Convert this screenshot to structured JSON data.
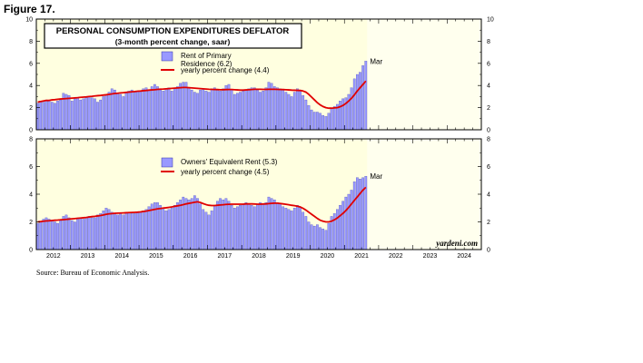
{
  "figure_label": "Figure 17.",
  "source_note": "Source: Bureau of Economic Analysis.",
  "credit": "yardeni.com",
  "colors": {
    "panel_bg": "#ffffe0",
    "projection_bg": "#ffffff",
    "bar_fill": "#9999ff",
    "bar_stroke": "#3333aa",
    "line": "#e00000"
  },
  "chart_data": [
    {
      "type": "bar",
      "title": "PERSONAL CONSUMPTION EXPENDITURES DEFLATOR",
      "subtitle": "(3-month percent change, saar)",
      "ylim": [
        0,
        10
      ],
      "yticks": [
        0,
        2,
        4,
        6,
        8,
        10
      ],
      "x_start": "2012-01",
      "x_end": "2024-12",
      "x_tick_years": [
        2012,
        2013,
        2014,
        2015,
        2016,
        2017,
        2018,
        2019,
        2020,
        2021,
        2022,
        2023,
        2024
      ],
      "end_label": "Mar",
      "series": [
        {
          "name": "Rent of Primary Residence (6.2)",
          "name_line1": "Rent of Primary",
          "name_line2": "Residence (6.2)",
          "kind": "bar",
          "start": "2012-01",
          "values": [
            2.4,
            2.6,
            2.5,
            2.7,
            2.6,
            2.5,
            2.4,
            2.6,
            2.7,
            3.3,
            3.2,
            3.1,
            2.6,
            2.8,
            2.9,
            2.7,
            2.8,
            2.9,
            3.0,
            2.9,
            2.8,
            2.5,
            2.7,
            3.0,
            3.2,
            3.4,
            3.7,
            3.6,
            3.3,
            3.2,
            3.0,
            3.3,
            3.5,
            3.6,
            3.4,
            3.5,
            3.5,
            3.7,
            3.8,
            3.6,
            3.9,
            4.1,
            3.9,
            3.6,
            3.5,
            3.7,
            3.8,
            3.5,
            3.7,
            3.9,
            4.2,
            4.3,
            4.3,
            3.8,
            3.6,
            3.4,
            3.3,
            3.6,
            3.7,
            3.5,
            3.4,
            3.7,
            3.8,
            3.6,
            3.5,
            3.7,
            4.0,
            4.1,
            3.6,
            3.2,
            3.3,
            3.4,
            3.5,
            3.6,
            3.7,
            3.8,
            3.8,
            3.6,
            3.4,
            3.5,
            3.8,
            4.3,
            4.2,
            3.9,
            3.8,
            3.7,
            3.6,
            3.4,
            3.2,
            3.0,
            3.4,
            3.7,
            3.5,
            3.1,
            2.7,
            2.2,
            1.8,
            1.6,
            1.6,
            1.5,
            1.3,
            1.2,
            1.5,
            1.9,
            2.1,
            2.3,
            2.6,
            2.8,
            2.9,
            3.2,
            3.8,
            4.6,
            5.0,
            5.2,
            5.8,
            6.2
          ],
          "color": "#9999ff"
        },
        {
          "name": "yearly percent change (4.4)",
          "kind": "line",
          "start": "2012-01",
          "values": [
            2.5,
            2.55,
            2.6,
            2.65,
            2.65,
            2.7,
            2.72,
            2.75,
            2.78,
            2.8,
            2.82,
            2.84,
            2.86,
            2.88,
            2.9,
            2.93,
            2.95,
            2.97,
            3.0,
            3.02,
            3.05,
            3.08,
            3.1,
            3.13,
            3.16,
            3.2,
            3.24,
            3.28,
            3.3,
            3.33,
            3.35,
            3.38,
            3.4,
            3.43,
            3.45,
            3.48,
            3.5,
            3.53,
            3.55,
            3.58,
            3.6,
            3.62,
            3.65,
            3.67,
            3.68,
            3.7,
            3.72,
            3.74,
            3.76,
            3.78,
            3.8,
            3.82,
            3.82,
            3.8,
            3.78,
            3.76,
            3.74,
            3.72,
            3.7,
            3.68,
            3.66,
            3.65,
            3.64,
            3.63,
            3.62,
            3.62,
            3.63,
            3.64,
            3.64,
            3.62,
            3.6,
            3.58,
            3.58,
            3.6,
            3.62,
            3.64,
            3.66,
            3.66,
            3.66,
            3.65,
            3.65,
            3.66,
            3.66,
            3.66,
            3.65,
            3.64,
            3.63,
            3.62,
            3.6,
            3.58,
            3.57,
            3.56,
            3.55,
            3.5,
            3.4,
            3.2,
            2.95,
            2.7,
            2.45,
            2.25,
            2.1,
            2.0,
            1.95,
            1.95,
            1.98,
            2.0,
            2.08,
            2.2,
            2.38,
            2.6,
            2.85,
            3.15,
            3.5,
            3.8,
            4.1,
            4.4
          ],
          "color": "#e00000"
        }
      ]
    },
    {
      "type": "bar",
      "ylim": [
        0,
        8
      ],
      "yticks": [
        0,
        2,
        4,
        6,
        8
      ],
      "x_start": "2012-01",
      "x_end": "2024-12",
      "x_tick_years": [
        2012,
        2013,
        2014,
        2015,
        2016,
        2017,
        2018,
        2019,
        2020,
        2021,
        2022,
        2023,
        2024
      ],
      "end_label": "Mar",
      "series": [
        {
          "name": "Owners' Equivalent Rent (5.3)",
          "kind": "bar",
          "start": "2012-01",
          "values": [
            1.9,
            2.0,
            2.2,
            2.3,
            2.2,
            2.1,
            2.0,
            1.9,
            2.1,
            2.4,
            2.5,
            2.3,
            2.1,
            2.0,
            2.2,
            2.3,
            2.2,
            2.3,
            2.4,
            2.3,
            2.3,
            2.5,
            2.6,
            2.8,
            3.0,
            2.9,
            2.7,
            2.6,
            2.5,
            2.6,
            2.5,
            2.7,
            2.7,
            2.6,
            2.6,
            2.7,
            2.7,
            2.8,
            2.9,
            3.1,
            3.3,
            3.4,
            3.4,
            3.2,
            3.0,
            2.8,
            2.9,
            3.0,
            3.2,
            3.4,
            3.6,
            3.8,
            3.7,
            3.6,
            3.7,
            3.9,
            3.7,
            3.3,
            2.9,
            2.7,
            2.5,
            2.8,
            3.2,
            3.5,
            3.7,
            3.6,
            3.7,
            3.5,
            3.2,
            3.0,
            3.1,
            3.2,
            3.3,
            3.4,
            3.3,
            3.2,
            3.1,
            3.3,
            3.4,
            3.3,
            3.4,
            3.8,
            3.7,
            3.6,
            3.4,
            3.3,
            3.1,
            3.0,
            2.9,
            2.8,
            3.0,
            3.2,
            3.1,
            2.7,
            2.4,
            2.0,
            1.8,
            1.7,
            1.8,
            1.6,
            1.5,
            1.4,
            1.9,
            2.4,
            2.6,
            2.9,
            3.2,
            3.5,
            3.8,
            4.0,
            4.3,
            4.9,
            5.2,
            5.1,
            5.2,
            5.3
          ],
          "color": "#9999ff"
        },
        {
          "name": "yearly percent change (4.5)",
          "kind": "line",
          "start": "2012-01",
          "values": [
            2.0,
            2.02,
            2.05,
            2.07,
            2.08,
            2.1,
            2.12,
            2.13,
            2.15,
            2.16,
            2.18,
            2.2,
            2.22,
            2.24,
            2.26,
            2.28,
            2.3,
            2.32,
            2.35,
            2.38,
            2.4,
            2.43,
            2.46,
            2.5,
            2.55,
            2.58,
            2.6,
            2.62,
            2.63,
            2.64,
            2.65,
            2.66,
            2.67,
            2.68,
            2.69,
            2.7,
            2.72,
            2.75,
            2.78,
            2.82,
            2.86,
            2.9,
            2.94,
            2.97,
            3.0,
            3.02,
            3.05,
            3.08,
            3.12,
            3.16,
            3.2,
            3.25,
            3.3,
            3.34,
            3.38,
            3.42,
            3.45,
            3.4,
            3.32,
            3.25,
            3.2,
            3.18,
            3.18,
            3.2,
            3.22,
            3.24,
            3.26,
            3.27,
            3.28,
            3.28,
            3.28,
            3.28,
            3.28,
            3.3,
            3.3,
            3.3,
            3.29,
            3.28,
            3.28,
            3.29,
            3.3,
            3.32,
            3.34,
            3.35,
            3.35,
            3.33,
            3.3,
            3.27,
            3.24,
            3.2,
            3.17,
            3.13,
            3.08,
            2.98,
            2.85,
            2.7,
            2.55,
            2.4,
            2.25,
            2.12,
            2.05,
            2.0,
            2.0,
            2.05,
            2.15,
            2.28,
            2.45,
            2.62,
            2.82,
            3.05,
            3.3,
            3.55,
            3.8,
            4.05,
            4.3,
            4.5
          ],
          "color": "#e00000"
        }
      ]
    }
  ]
}
